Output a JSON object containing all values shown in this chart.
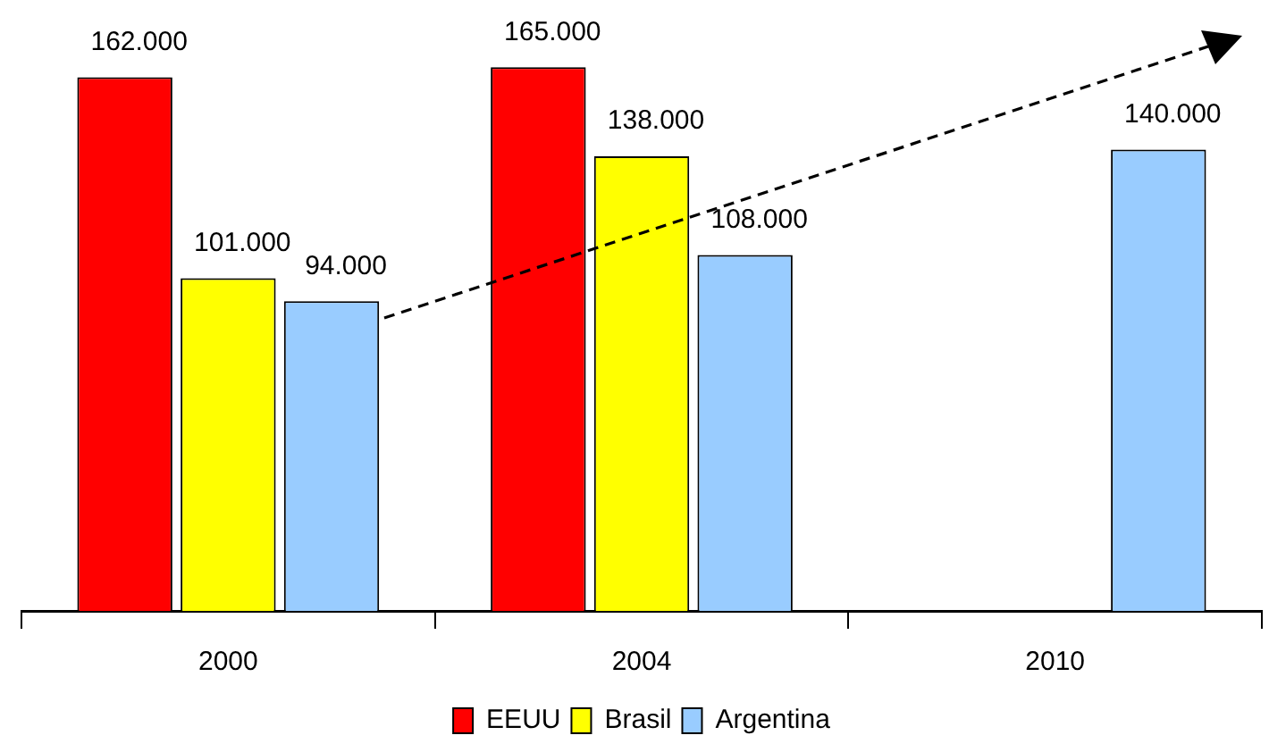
{
  "chart_data": {
    "type": "bar",
    "categories": [
      "2000",
      "2004",
      "2010"
    ],
    "series": [
      {
        "name": "EEUU",
        "color": "#ff0000",
        "values": [
          162000,
          165000,
          null
        ],
        "value_labels": [
          "162.000",
          "165.000",
          null
        ]
      },
      {
        "name": "Brasil",
        "color": "#ffff00",
        "values": [
          101000,
          138000,
          null
        ],
        "value_labels": [
          "101.000",
          "138.000",
          null
        ]
      },
      {
        "name": "Argentina",
        "color": "#99ccff",
        "values": [
          94000,
          108000,
          140000
        ],
        "value_labels": [
          "94.000",
          "108.000",
          "140.000"
        ]
      }
    ],
    "legend": "bottom",
    "grid": false,
    "tick_labels": "x"
  }
}
